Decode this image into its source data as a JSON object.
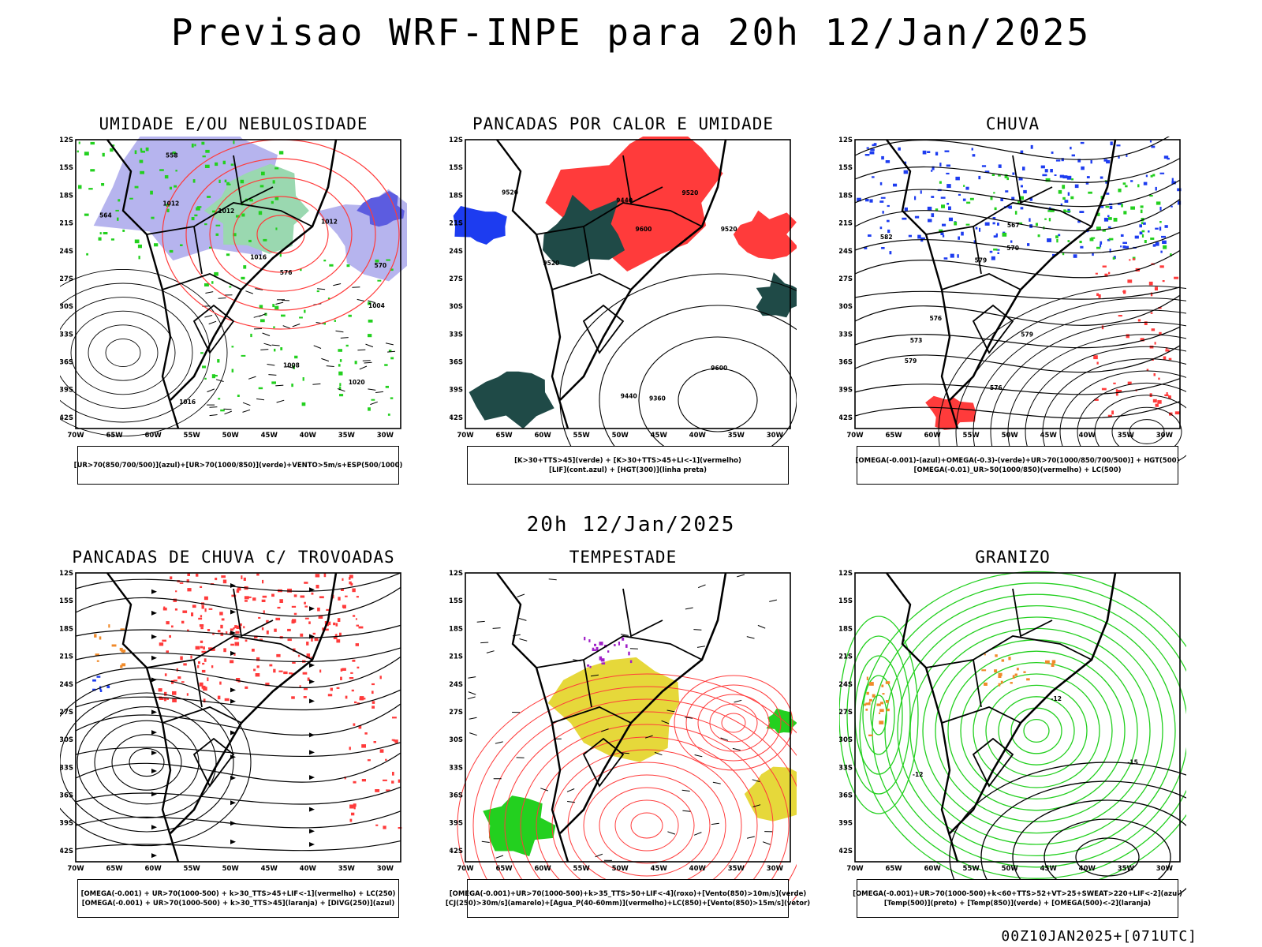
{
  "header": {
    "title": "Previsao WRF-INPE  para 20h 12/Jan/2025"
  },
  "mid": {
    "label": "20h 12/Jan/2025"
  },
  "footer": {
    "stamp": "00Z10JAN2025+[071UTC]"
  },
  "axes": {
    "lat_ticks": [
      "12S",
      "15S",
      "18S",
      "21S",
      "24S",
      "27S",
      "30S",
      "33S",
      "36S",
      "39S",
      "42S"
    ],
    "lon_ticks": [
      "70W",
      "65W",
      "60W",
      "55W",
      "50W",
      "45W",
      "40W",
      "35W",
      "30W"
    ]
  },
  "colors": {
    "blue": "#1d3cf0",
    "lavender": "#b6b4ee",
    "green": "#23d01f",
    "red": "#ff3b3b",
    "darkgreen": "#1f4a47",
    "yellow": "#e6d83a",
    "orange": "#f08a2a",
    "purple": "#a020c8"
  },
  "panels": [
    {
      "title": "UMIDADE E/OU NEBULOSIDADE",
      "legend": [
        "[UR>70(850/700/500)](azul)+[UR>70(1000/850)](verde)+VENTO>5m/s+ESP(500/1000)"
      ],
      "contour_labels": [
        "1004",
        "1008",
        "1012",
        "1012",
        "1012",
        "1016",
        "1016",
        "1020",
        "570",
        "576",
        "564",
        "558"
      ]
    },
    {
      "title": "PANCADAS POR CALOR E UMIDADE",
      "legend": [
        "[K>30+TTS>45](verde) + [K>30+TTS>45+LI<-1](vermelho)",
        "[LIF](cont.azul) + [HGT(300)](linha preta)"
      ],
      "contour_labels": [
        "9600",
        "9600",
        "9520",
        "9520",
        "9440",
        "9440",
        "9360",
        "9520",
        "9520"
      ]
    },
    {
      "title": "CHUVA",
      "legend": [
        "[OMEGA(-0.001)-(azul)+OMEGA(-0.3)-(verde)+UR>70(1000/850/700/500)] + HGT(500)",
        "[OMEGA(-0.01)_UR>50(1000/850)(vermelho) + LC(500)"
      ],
      "contour_labels": [
        "582",
        "579",
        "576",
        "576",
        "573",
        "570",
        "567",
        "579",
        "579"
      ]
    },
    {
      "title": "PANCADAS DE CHUVA C/ TROVOADAS",
      "legend": [
        "[OMEGA(-0.001) + UR>70(1000-500) + k>30_TTS>45+LIF<-1](vermelho) + LC(250)",
        "[OMEGA(-0.001) + UR>70(1000-500) + k>30_TTS>45](laranja) + [DIVG(250)](azul)"
      ],
      "contour_labels": []
    },
    {
      "title": "TEMPESTADE",
      "legend": [
        "[OMEGA(-0.001)+UR>70(1000-500)+k>35_TTS>50+LIF<-4](roxo)+[Vento(850)>10m/s](verde)",
        "[CJ(250)>30m/s](amarelo)+[Agua_P(40-60mm)](vermelho)+LC(850)+[Vento(850)>15m/s](vetor)"
      ],
      "contour_labels": []
    },
    {
      "title": "GRANIZO",
      "legend": [
        "[OMEGA(-0.001)+UR>70(1000-500)+k<60+TTS>52+VT>25+SWEAT>220+LIF<-2](azul)",
        "[Temp(500)](preto) + [Temp(850)](verde) + [OMEGA(500)<-2](laranja)"
      ],
      "contour_labels": [
        "-12",
        "-12",
        "-15"
      ]
    }
  ]
}
